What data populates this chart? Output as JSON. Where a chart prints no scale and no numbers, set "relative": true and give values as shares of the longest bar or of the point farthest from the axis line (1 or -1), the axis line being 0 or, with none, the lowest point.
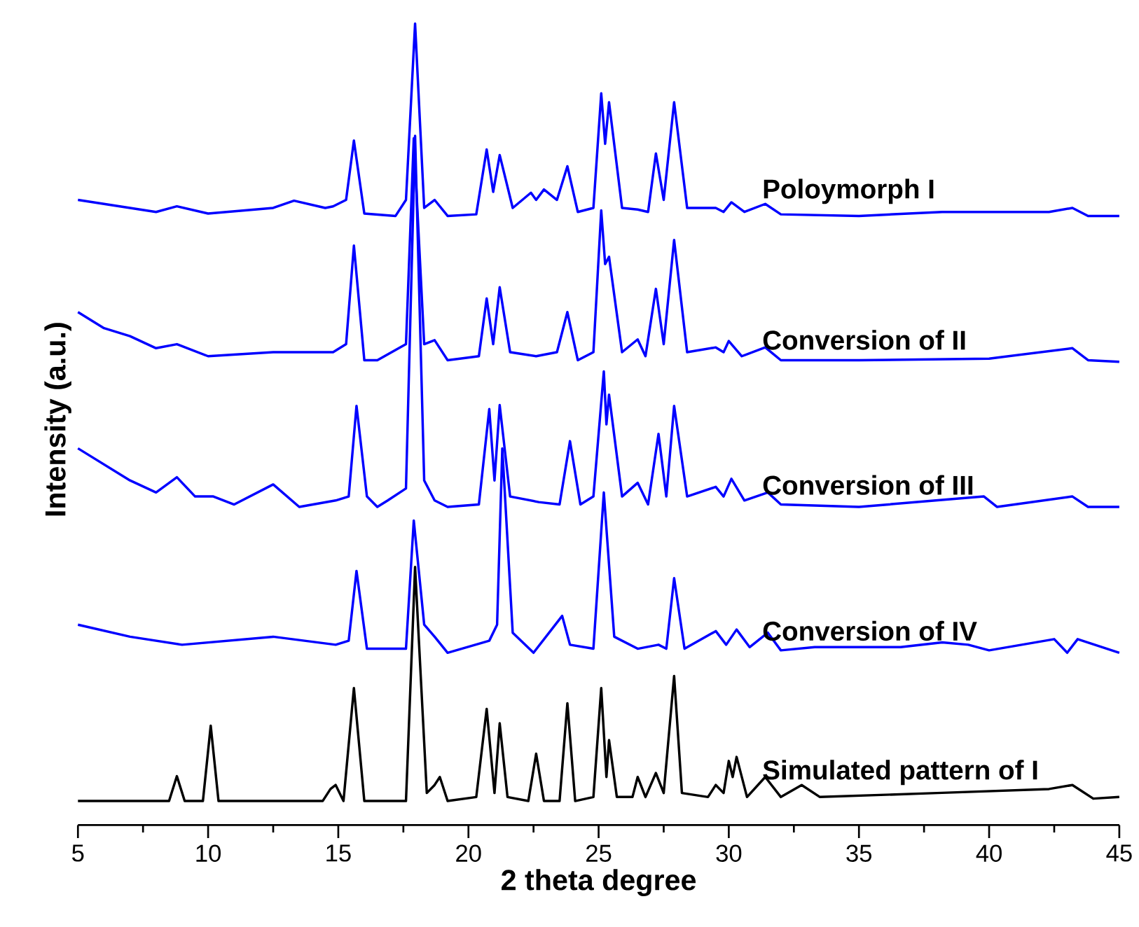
{
  "chart_data": {
    "type": "line",
    "xlabel": "2 theta degree",
    "ylabel": "Intensity (a.u.)",
    "relative": true,
    "xlim": [
      5,
      45
    ],
    "xticks": [
      5,
      10,
      15,
      20,
      25,
      30,
      35,
      40,
      45
    ],
    "tick_labels": "x",
    "legend": false,
    "grid": false,
    "marker": "none",
    "line_style": "solid",
    "series": [
      {
        "name": "Poloymorph I",
        "color": "#0000ff",
        "x": [
          5,
          6,
          8,
          8.8,
          10,
          12.5,
          13.3,
          14.5,
          14.8,
          15.3,
          15.6,
          16,
          17.2,
          17.6,
          17.95,
          18.3,
          18.7,
          19.2,
          20.3,
          20.7,
          20.95,
          21.2,
          21.7,
          22.4,
          22.6,
          22.9,
          23.4,
          23.8,
          24.2,
          24.8,
          25.1,
          25.25,
          25.4,
          25.9,
          26.5,
          26.9,
          27.2,
          27.5,
          27.9,
          28.4,
          29.5,
          29.8,
          30.1,
          30.6,
          31.4,
          32,
          35,
          38.2,
          38.8,
          40,
          42.3,
          43.2,
          43.8,
          45
        ],
        "values": [
          0.78,
          0.775,
          0.765,
          0.772,
          0.763,
          0.77,
          0.779,
          0.77,
          0.772,
          0.78,
          0.854,
          0.763,
          0.76,
          0.78,
          1.0,
          0.77,
          0.78,
          0.76,
          0.762,
          0.843,
          0.79,
          0.836,
          0.77,
          0.789,
          0.78,
          0.793,
          0.78,
          0.822,
          0.765,
          0.77,
          0.913,
          0.85,
          0.902,
          0.77,
          0.768,
          0.765,
          0.838,
          0.78,
          0.902,
          0.77,
          0.77,
          0.765,
          0.777,
          0.765,
          0.775,
          0.762,
          0.76,
          0.765,
          0.765,
          0.765,
          0.765,
          0.77,
          0.76,
          0.76
        ]
      },
      {
        "name": "Conversion of II",
        "color": "#0000ff",
        "x": [
          5,
          6,
          7,
          8,
          8.8,
          10,
          12.5,
          14.8,
          15.3,
          15.6,
          16,
          16.5,
          17.6,
          17.9,
          18.3,
          18.7,
          19.2,
          20.4,
          20.7,
          20.95,
          21.2,
          21.6,
          22.6,
          23.4,
          23.8,
          24.2,
          24.8,
          25.1,
          25.25,
          25.4,
          25.9,
          26.5,
          26.8,
          27.2,
          27.5,
          27.9,
          28.4,
          29.5,
          29.8,
          30.0,
          30.5,
          31.4,
          32,
          35,
          40,
          43.2,
          43.8,
          45
        ],
        "values": [
          0.64,
          0.62,
          0.61,
          0.595,
          0.6,
          0.585,
          0.59,
          0.59,
          0.6,
          0.723,
          0.58,
          0.58,
          0.6,
          0.857,
          0.6,
          0.605,
          0.58,
          0.585,
          0.657,
          0.6,
          0.671,
          0.59,
          0.585,
          0.59,
          0.64,
          0.58,
          0.59,
          0.767,
          0.7,
          0.709,
          0.59,
          0.606,
          0.585,
          0.669,
          0.6,
          0.73,
          0.59,
          0.596,
          0.59,
          0.604,
          0.585,
          0.596,
          0.58,
          0.58,
          0.582,
          0.595,
          0.58,
          0.578
        ]
      },
      {
        "name": "Conversion of III",
        "color": "#0000ff",
        "x": [
          5,
          6,
          7,
          8,
          8.8,
          9.5,
          10.2,
          11,
          12.5,
          13.5,
          14.9,
          15.4,
          15.7,
          16.1,
          16.5,
          16.9,
          17.6,
          17.95,
          18.3,
          18.7,
          19.2,
          20.4,
          20.8,
          21.0,
          21.2,
          21.6,
          22.7,
          23.5,
          23.9,
          24.3,
          24.8,
          25.2,
          25.3,
          25.4,
          25.9,
          26.5,
          26.9,
          27.3,
          27.6,
          27.9,
          28.4,
          29.5,
          29.8,
          30.1,
          30.6,
          31.5,
          32,
          35,
          39.8,
          40.3,
          43.2,
          43.8,
          45
        ],
        "values": [
          0.47,
          0.45,
          0.43,
          0.415,
          0.434,
          0.41,
          0.41,
          0.4,
          0.425,
          0.397,
          0.405,
          0.41,
          0.523,
          0.41,
          0.397,
          0.405,
          0.42,
          0.86,
          0.43,
          0.405,
          0.397,
          0.4,
          0.519,
          0.43,
          0.524,
          0.41,
          0.403,
          0.4,
          0.479,
          0.4,
          0.41,
          0.566,
          0.5,
          0.537,
          0.41,
          0.427,
          0.4,
          0.488,
          0.41,
          0.523,
          0.41,
          0.422,
          0.41,
          0.432,
          0.405,
          0.415,
          0.4,
          0.397,
          0.41,
          0.397,
          0.41,
          0.397,
          0.397
        ]
      },
      {
        "name": "Conversion of IV",
        "color": "#0000ff",
        "x": [
          5,
          7,
          9,
          12.5,
          14.9,
          15.4,
          15.7,
          16.1,
          17.6,
          17.9,
          18.3,
          18.7,
          19.2,
          20.8,
          21.1,
          21.3,
          21.7,
          22.5,
          23.6,
          23.9,
          24.8,
          25.2,
          25.6,
          26.5,
          27.3,
          27.6,
          27.9,
          28.3,
          29.5,
          29.9,
          30.3,
          30.8,
          31.5,
          32,
          33.3,
          36.6,
          38.2,
          39.2,
          40,
          42.5,
          43.0,
          43.4,
          45
        ],
        "values": [
          0.25,
          0.235,
          0.225,
          0.235,
          0.225,
          0.23,
          0.317,
          0.22,
          0.22,
          0.38,
          0.25,
          0.235,
          0.215,
          0.23,
          0.25,
          0.47,
          0.24,
          0.215,
          0.261,
          0.225,
          0.22,
          0.415,
          0.235,
          0.22,
          0.225,
          0.22,
          0.308,
          0.22,
          0.242,
          0.225,
          0.244,
          0.222,
          0.24,
          0.218,
          0.222,
          0.222,
          0.228,
          0.225,
          0.218,
          0.232,
          0.215,
          0.232,
          0.215
        ]
      },
      {
        "name": "Simulated pattern of I",
        "color": "#000000",
        "x": [
          5,
          8.5,
          8.8,
          9.1,
          9.8,
          10.1,
          10.4,
          14.4,
          14.7,
          14.9,
          15.2,
          15.6,
          16,
          17.6,
          17.95,
          18.4,
          18.7,
          18.9,
          19.2,
          20.3,
          20.7,
          21.0,
          21.2,
          21.5,
          22.3,
          22.6,
          22.9,
          23.5,
          23.8,
          24.1,
          24.8,
          25.1,
          25.3,
          25.4,
          25.7,
          26.3,
          26.5,
          26.8,
          27.2,
          27.5,
          27.9,
          28.2,
          29.2,
          29.5,
          29.8,
          30.0,
          30.15,
          30.3,
          30.7,
          31.4,
          32,
          32.8,
          33.5,
          38,
          42.3,
          43.2,
          44,
          45
        ],
        "values": [
          0.03,
          0.03,
          0.061,
          0.03,
          0.03,
          0.124,
          0.03,
          0.03,
          0.045,
          0.05,
          0.03,
          0.171,
          0.03,
          0.03,
          0.322,
          0.04,
          0.05,
          0.06,
          0.03,
          0.035,
          0.145,
          0.04,
          0.127,
          0.035,
          0.03,
          0.089,
          0.03,
          0.03,
          0.152,
          0.03,
          0.035,
          0.171,
          0.06,
          0.106,
          0.035,
          0.035,
          0.06,
          0.035,
          0.065,
          0.04,
          0.186,
          0.04,
          0.035,
          0.05,
          0.04,
          0.08,
          0.06,
          0.085,
          0.035,
          0.06,
          0.035,
          0.05,
          0.035,
          0.04,
          0.045,
          0.05,
          0.033,
          0.035
        ]
      }
    ]
  }
}
